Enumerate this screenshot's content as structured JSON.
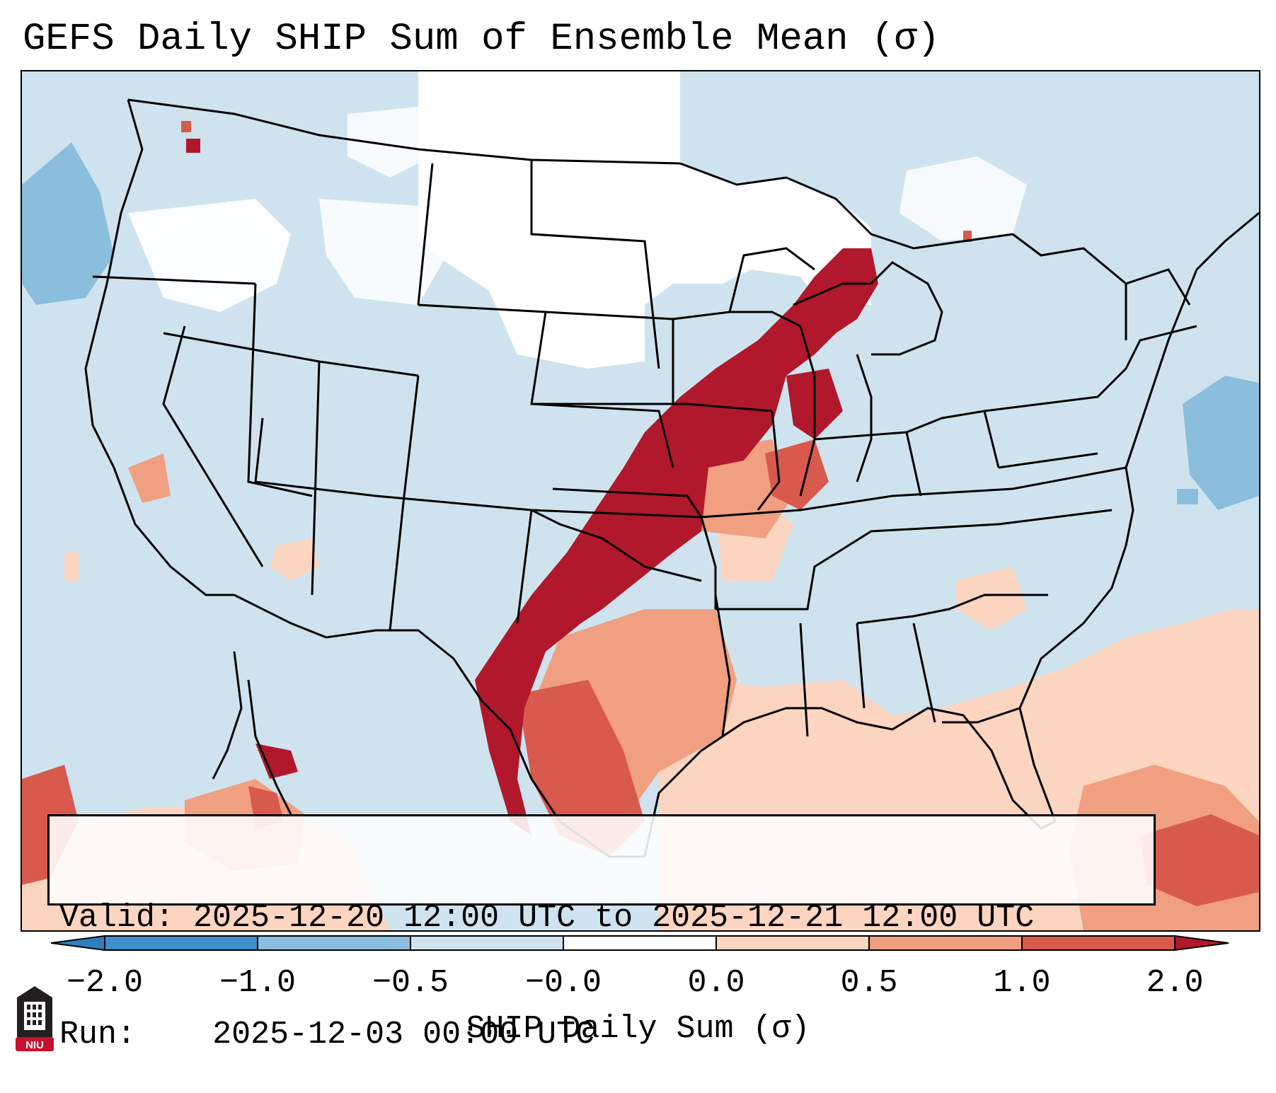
{
  "title": "GEFS Daily SHIP Sum of Ensemble Mean (σ)",
  "info": {
    "valid_label": "Valid:",
    "valid_value": "2025-12-20 12:00 UTC to 2025-12-21 12:00 UTC",
    "run_label": "Run:",
    "run_value": "2025-12-03 00:00 UTC"
  },
  "colorbar": {
    "label": "SHIP Daily Sum (σ)",
    "tick_labels": [
      "−2.0",
      "−1.0",
      "−0.5",
      "−0.0",
      "0.0",
      "0.5",
      "1.0",
      "2.0"
    ],
    "bins": [
      {
        "range": "< -2.0",
        "color": "#2e7fc0"
      },
      {
        "range": "-2.0 to -1.0",
        "color": "#3f8fca"
      },
      {
        "range": "-1.0 to -0.5",
        "color": "#8bbedc"
      },
      {
        "range": "-0.5 to -0.0",
        "color": "#cfe3ef"
      },
      {
        "range": "-0.0 to 0.0",
        "color": "#ffffff"
      },
      {
        "range": "0.0 to 0.5",
        "color": "#fcd5c0"
      },
      {
        "range": "0.5 to 1.0",
        "color": "#f09f80"
      },
      {
        "range": "1.0 to 2.0",
        "color": "#d85a4c"
      },
      {
        "range": "> 2.0",
        "color": "#b2182b"
      }
    ]
  },
  "map": {
    "region": "Contiguous United States",
    "field_colors": {
      "near_zero": "#ffffff",
      "slightly_negative": "#cfe3ef",
      "negative": "#8bbedc",
      "slightly_positive": "#fcd5c0",
      "positive": "#f09f80",
      "high": "#d85a4c",
      "very_high": "#b2182b"
    }
  },
  "logo": {
    "text": "NIU",
    "color": "#c8102e"
  }
}
